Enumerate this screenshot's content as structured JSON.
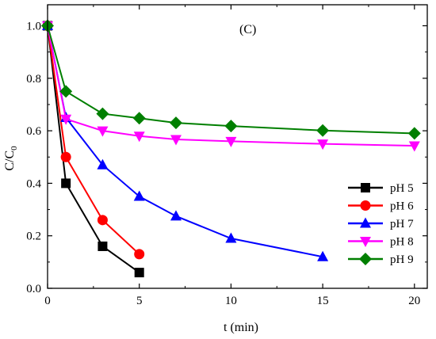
{
  "chart_data": {
    "type": "line",
    "panel_label": "(C)",
    "xlabel": "t (min)",
    "ylabel": "C/C",
    "ylabel_subscript": "0",
    "xlim": [
      0,
      20.7
    ],
    "ylim": [
      0.0,
      1.08
    ],
    "xticks": [
      0,
      5,
      10,
      15,
      20
    ],
    "xtick_labels": [
      "0",
      "5",
      "10",
      "15",
      "20"
    ],
    "yticks": [
      0.0,
      0.2,
      0.4,
      0.6,
      0.8,
      1.0
    ],
    "ytick_labels": [
      "0.0",
      "0.2",
      "0.4",
      "0.6",
      "0.8",
      "1.0"
    ],
    "grid": false,
    "legend_position": "right",
    "series": [
      {
        "name": "pH 5",
        "marker": "square",
        "color": "#000000",
        "x": [
          0,
          1,
          3,
          5
        ],
        "y": [
          1.0,
          0.4,
          0.16,
          0.06
        ]
      },
      {
        "name": "pH 6",
        "marker": "circle",
        "color": "#ff0000",
        "x": [
          0,
          1,
          3,
          5
        ],
        "y": [
          1.0,
          0.5,
          0.26,
          0.13
        ]
      },
      {
        "name": "pH 7",
        "marker": "triangle-up",
        "color": "#0000ff",
        "x": [
          0,
          1,
          3,
          5,
          7,
          10,
          15
        ],
        "y": [
          1.0,
          0.65,
          0.47,
          0.35,
          0.275,
          0.19,
          0.12
        ]
      },
      {
        "name": "pH 8",
        "marker": "triangle-down",
        "color": "#ff00ff",
        "x": [
          0,
          1,
          3,
          5,
          7,
          10,
          15,
          20
        ],
        "y": [
          1.0,
          0.645,
          0.6,
          0.58,
          0.567,
          0.56,
          0.55,
          0.543
        ]
      },
      {
        "name": "pH 9",
        "marker": "diamond",
        "color": "#007f00",
        "x": [
          0,
          1,
          3,
          5,
          7,
          10,
          15,
          20
        ],
        "y": [
          1.0,
          0.75,
          0.665,
          0.648,
          0.63,
          0.618,
          0.601,
          0.59
        ]
      }
    ]
  }
}
